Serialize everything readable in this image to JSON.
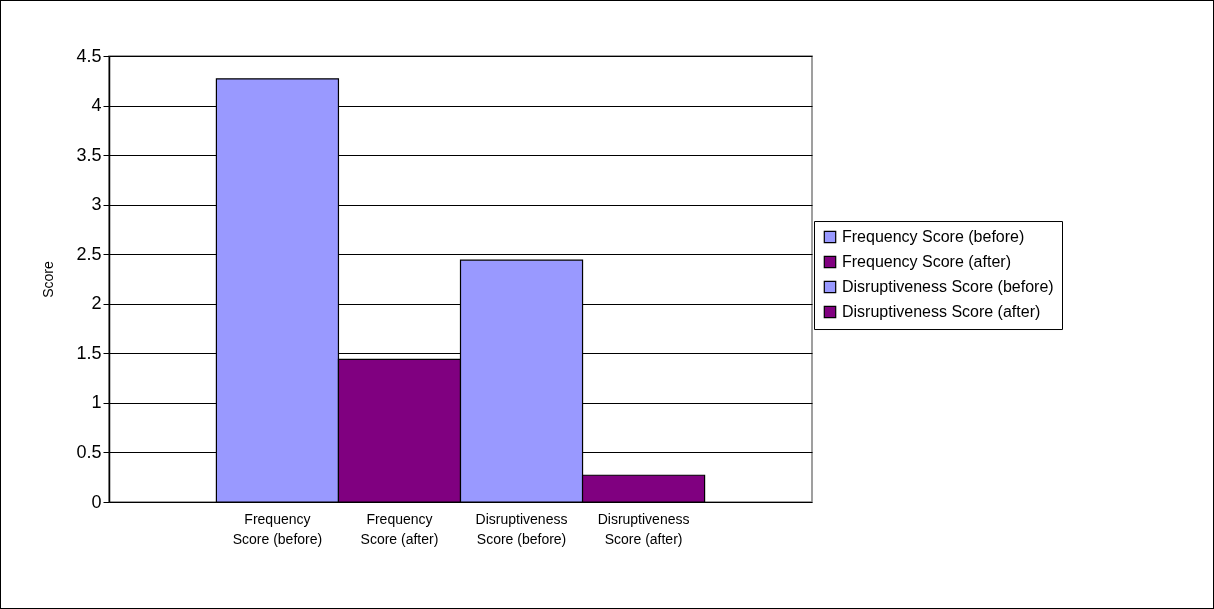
{
  "chart_data": {
    "type": "bar",
    "ylabel": "Score",
    "stacked": true,
    "categories": [
      "Frequency Score (before)",
      "Frequency Score (after)",
      "Disruptiveness Score (before)",
      "Disruptiveness Score (after)"
    ],
    "series": [
      {
        "name": "Frequency Score (before)",
        "color": "#9999ff",
        "values": [
          4.27,
          null,
          null,
          null
        ]
      },
      {
        "name": "Frequency Score (after)",
        "color": "#800080",
        "values": [
          null,
          1.44,
          null,
          null
        ]
      },
      {
        "name": "Disruptiveness Score (before)",
        "color": "#9999ff",
        "values": [
          null,
          null,
          2.44,
          null
        ]
      },
      {
        "name": "Disruptiveness Score (after)",
        "color": "#800080",
        "values": [
          null,
          null,
          null,
          0.27
        ]
      }
    ],
    "ylim": [
      0,
      4.5
    ],
    "yticks": [
      0,
      0.5,
      1,
      1.5,
      2,
      2.5,
      3,
      3.5,
      4,
      4.5
    ],
    "grid": "y",
    "legend": "right"
  }
}
